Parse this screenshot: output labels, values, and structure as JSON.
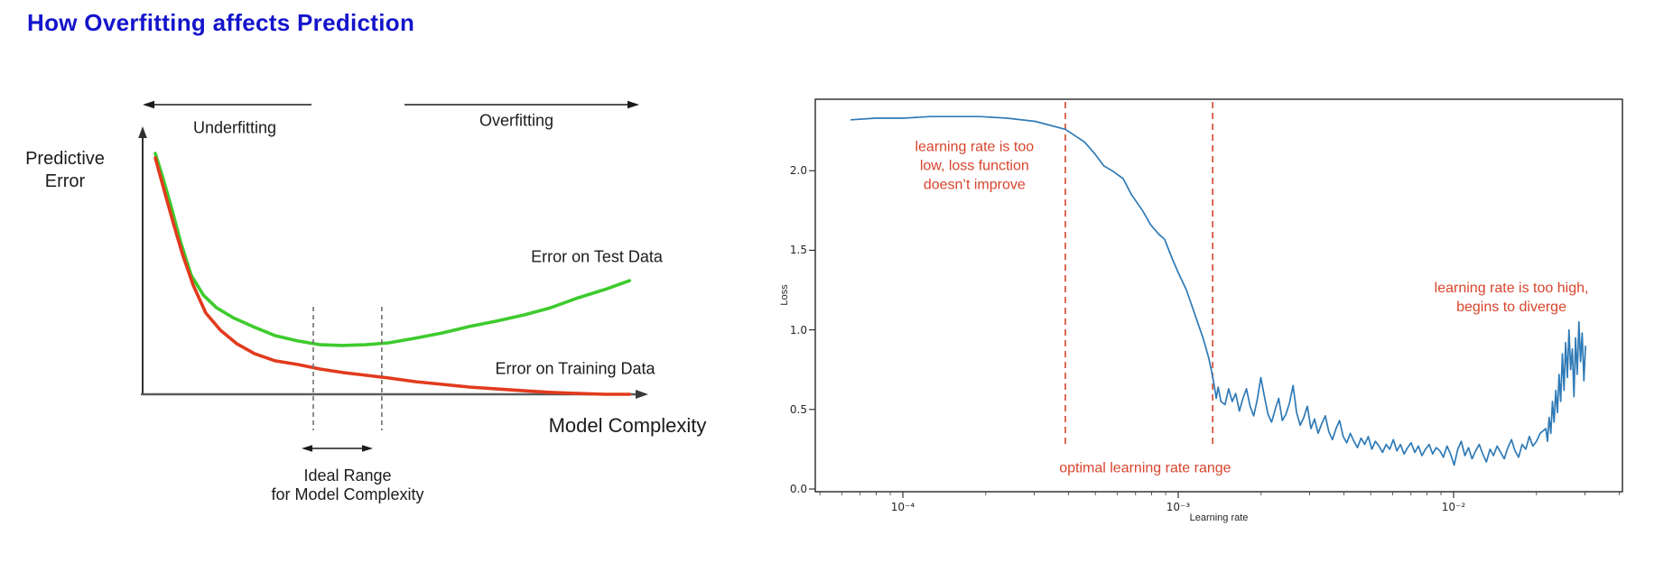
{
  "page": {
    "title": "How Overfitting affects Prediction",
    "title_color": "#1414cc",
    "background": "#ffffff"
  },
  "chart_data": [
    {
      "id": "overfitting-diagram",
      "type": "line",
      "title": "How Overfitting affects Prediction",
      "xlabel": "Model Complexity",
      "ylabel": "Predictive\nError",
      "axes_numeric": false,
      "legend_position": "inline-labels",
      "labels": {
        "underfitting": "Underfitting",
        "overfitting": "Overfitting",
        "test_series": "Error on Test Data",
        "train_series": "Error on Training Data",
        "ideal_range": "Ideal Range\nfor Model Complexity"
      },
      "colors": {
        "test": "#3dcb2d",
        "train": "#e23a1d",
        "axis": "#3d3d3d",
        "dashed": "#6f6f6f",
        "arrow": "#1a1a1a"
      },
      "ideal_range_x": [
        0.3375,
        0.473
      ],
      "series": [
        {
          "name": "Error on Test Data",
          "color": "#3dcb2d",
          "points": [
            [
              0.025,
              0.899
            ],
            [
              0.039,
              0.815
            ],
            [
              0.057,
              0.697
            ],
            [
              0.075,
              0.569
            ],
            [
              0.096,
              0.444
            ],
            [
              0.12,
              0.37
            ],
            [
              0.146,
              0.323
            ],
            [
              0.179,
              0.286
            ],
            [
              0.218,
              0.253
            ],
            [
              0.262,
              0.219
            ],
            [
              0.307,
              0.199
            ],
            [
              0.352,
              0.185
            ],
            [
              0.396,
              0.182
            ],
            [
              0.441,
              0.185
            ],
            [
              0.486,
              0.192
            ],
            [
              0.539,
              0.209
            ],
            [
              0.593,
              0.229
            ],
            [
              0.646,
              0.253
            ],
            [
              0.7,
              0.273
            ],
            [
              0.754,
              0.296
            ],
            [
              0.807,
              0.323
            ],
            [
              0.861,
              0.36
            ],
            [
              0.914,
              0.391
            ],
            [
              0.963,
              0.424
            ]
          ]
        },
        {
          "name": "Error on Training Data",
          "color": "#e23a1d",
          "points": [
            [
              0.025,
              0.882
            ],
            [
              0.043,
              0.758
            ],
            [
              0.061,
              0.636
            ],
            [
              0.079,
              0.522
            ],
            [
              0.1,
              0.407
            ],
            [
              0.125,
              0.303
            ],
            [
              0.154,
              0.239
            ],
            [
              0.186,
              0.189
            ],
            [
              0.221,
              0.152
            ],
            [
              0.262,
              0.125
            ],
            [
              0.307,
              0.111
            ],
            [
              0.352,
              0.094
            ],
            [
              0.396,
              0.081
            ],
            [
              0.441,
              0.071
            ],
            [
              0.486,
              0.061
            ],
            [
              0.539,
              0.047
            ],
            [
              0.593,
              0.037
            ],
            [
              0.646,
              0.027
            ],
            [
              0.7,
              0.02
            ],
            [
              0.754,
              0.013
            ],
            [
              0.807,
              0.007
            ],
            [
              0.861,
              0.003
            ],
            [
              0.914,
              0.0
            ],
            [
              0.963,
              0.0
            ]
          ]
        }
      ]
    },
    {
      "id": "lr-finder",
      "type": "line",
      "xlabel": "Learning rate",
      "ylabel": "Loss",
      "x_scale": "log",
      "xlim_log10": [
        -4.318,
        -1.387
      ],
      "ylim": [
        0,
        2.46
      ],
      "grid": false,
      "x_ticks": [
        {
          "log10": -4,
          "label": "10⁻⁴"
        },
        {
          "log10": -3,
          "label": "10⁻³"
        },
        {
          "log10": -2,
          "label": "10⁻²"
        }
      ],
      "y_ticks": [
        {
          "value": 0.0,
          "label": "0.0"
        },
        {
          "value": 0.5,
          "label": "0.5"
        },
        {
          "value": 1.0,
          "label": "1.0"
        },
        {
          "value": 1.5,
          "label": "1.5"
        },
        {
          "value": 2.0,
          "label": "2.0"
        }
      ],
      "optimal_range_log10": [
        -3.41,
        -2.875
      ],
      "annotation_color": "#d8442c",
      "annotations": [
        {
          "id": "too-low",
          "text": "learning rate is too\nlow, loss function\ndoesn’t improve",
          "color": "#d8442c",
          "log10_x": -3.74,
          "y": 2.03
        },
        {
          "id": "optimal",
          "text": "optimal learning rate range",
          "color": "#d8442c",
          "log10_x": -3.12,
          "y": 0.13
        },
        {
          "id": "too-high",
          "text": "learning rate is too high,\nbegins to diverge",
          "color": "#d8442c",
          "log10_x": -1.79,
          "y": 1.2
        }
      ],
      "series": [
        {
          "name": "loss",
          "color": "#2f7ab6",
          "segments": [
            {
              "pairs": [
                [
                  -4.19,
                  2.32
                ],
                [
                  -4.1,
                  2.33
                ],
                [
                  -4.0,
                  2.33
                ],
                [
                  -3.9,
                  2.34
                ],
                [
                  -3.8,
                  2.34
                ],
                [
                  -3.72,
                  2.34
                ],
                [
                  -3.62,
                  2.33
                ],
                [
                  -3.52,
                  2.31
                ],
                [
                  -3.41,
                  2.26
                ],
                [
                  -3.34,
                  2.18
                ],
                [
                  -3.3,
                  2.1
                ],
                [
                  -3.27,
                  2.03
                ],
                [
                  -3.24,
                  2.0
                ],
                [
                  -3.2,
                  1.95
                ],
                [
                  -3.17,
                  1.85
                ],
                [
                  -3.13,
                  1.75
                ],
                [
                  -3.1,
                  1.66
                ],
                [
                  -3.07,
                  1.6
                ],
                [
                  -3.05,
                  1.57
                ],
                [
                  -3.02,
                  1.44
                ],
                [
                  -3.0,
                  1.36
                ],
                [
                  -2.97,
                  1.25
                ],
                [
                  -2.95,
                  1.15
                ],
                [
                  -2.93,
                  1.05
                ],
                [
                  -2.91,
                  0.95
                ],
                [
                  -2.89,
                  0.83
                ],
                [
                  -2.88,
                  0.75
                ],
                [
                  -2.87,
                  0.66
                ],
                [
                  -2.862,
                  0.57
                ],
                [
                  -2.855,
                  0.64
                ],
                [
                  -2.845,
                  0.55
                ]
              ]
            },
            {
              "start_log10": -2.83,
              "step": 0.013,
              "losses": [
                0.53,
                0.63,
                0.55,
                0.6,
                0.49,
                0.57,
                0.63,
                0.52,
                0.46,
                0.56,
                0.7,
                0.58,
                0.47,
                0.42,
                0.5,
                0.57,
                0.43,
                0.47,
                0.54,
                0.65,
                0.48,
                0.4,
                0.45,
                0.52,
                0.38,
                0.44,
                0.35,
                0.41,
                0.46,
                0.36,
                0.31,
                0.38,
                0.43,
                0.33,
                0.29,
                0.35,
                0.3,
                0.26,
                0.32,
                0.28,
                0.33,
                0.25,
                0.3,
                0.27,
                0.23,
                0.28,
                0.25,
                0.31,
                0.24,
                0.28,
                0.22,
                0.26,
                0.29,
                0.23,
                0.27,
                0.21,
                0.25,
                0.28,
                0.22,
                0.26
              ]
            },
            {
              "start_log10": -2.05,
              "step": 0.013,
              "losses": [
                0.24,
                0.2,
                0.27,
                0.22,
                0.15,
                0.25,
                0.3,
                0.21,
                0.26,
                0.19,
                0.24,
                0.28,
                0.22,
                0.17,
                0.25,
                0.21,
                0.27,
                0.23,
                0.19,
                0.26,
                0.31,
                0.24,
                0.2,
                0.28,
                0.25,
                0.33,
                0.27,
                0.3,
                0.35
              ]
            },
            {
              "start_log10": -1.665,
              "step": 0.006,
              "losses": [
                0.38,
                0.3,
                0.45,
                0.35,
                0.55,
                0.42,
                0.62,
                0.48,
                0.72,
                0.55,
                0.85,
                0.62,
                0.92,
                0.7,
                1.0,
                0.75,
                0.88,
                0.58,
                0.95,
                0.72,
                1.05,
                0.8,
                0.98,
                0.68,
                0.9
              ]
            }
          ]
        }
      ]
    }
  ]
}
